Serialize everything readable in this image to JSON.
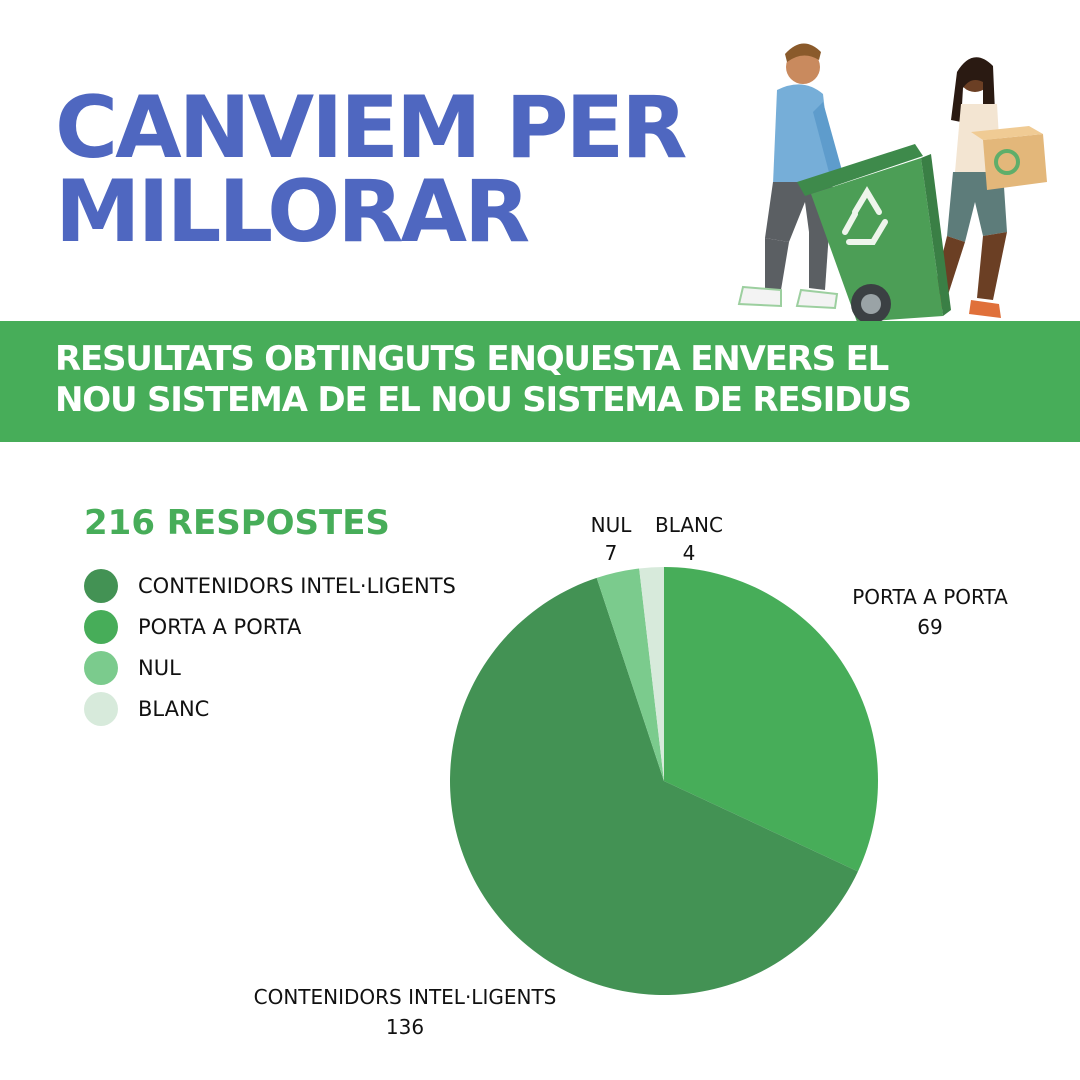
{
  "header": {
    "title_line1": "CANVIEM PER",
    "title_line2": "MILLORAR"
  },
  "banner": {
    "text": "RESULTATS  OBTINGUTS ENQUESTA ENVERS EL\nNOU SISTEMA DE  EL NOU SISTEMA DE  RESIDUS"
  },
  "total_label": "216 RESPOSTES",
  "colors": {
    "title": "#4f67c0",
    "banner": "#47ad59"
  },
  "chart_data": {
    "type": "pie",
    "categories": [
      "CONTENIDORS INTEL·LIGENTS",
      "PORTA A PORTA",
      "NUL",
      "BLANC"
    ],
    "values": [
      136,
      69,
      7,
      4
    ],
    "colors": [
      "#439254",
      "#47ad59",
      "#7bcb8d",
      "#d7eadb"
    ],
    "legend_position": "top-left",
    "title": ""
  },
  "illustration": {
    "description_icon": "recycling-people-icon"
  }
}
